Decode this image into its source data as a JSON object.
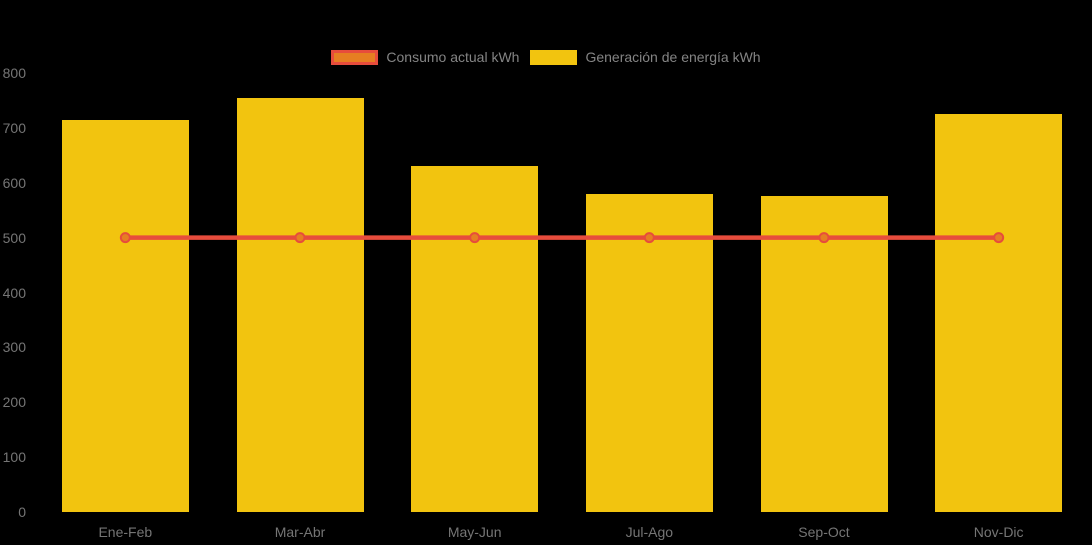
{
  "chart_data": {
    "type": "bar+line",
    "categories": [
      "Ene-Feb",
      "Mar-Abr",
      "May-Jun",
      "Jul-Ago",
      "Sep-Oct",
      "Nov-Dic"
    ],
    "series": [
      {
        "name": "Consumo actual kWh",
        "type": "line",
        "values": [
          500,
          500,
          500,
          500,
          500,
          500
        ],
        "color": "#E74C3C",
        "marker_fill": "#E67E22"
      },
      {
        "name": "Generación de energía kWh",
        "type": "bar",
        "values": [
          715,
          755,
          630,
          580,
          575,
          725
        ],
        "color": "#F2C40F"
      }
    ],
    "ylim": [
      0,
      800
    ],
    "y_ticks": [
      0,
      100,
      200,
      300,
      400,
      500,
      600,
      700,
      800
    ],
    "grid": false,
    "legend_position": "top-center",
    "background": "#000000",
    "axis_label_color": "#757575",
    "legend_text_color": "#848484"
  }
}
